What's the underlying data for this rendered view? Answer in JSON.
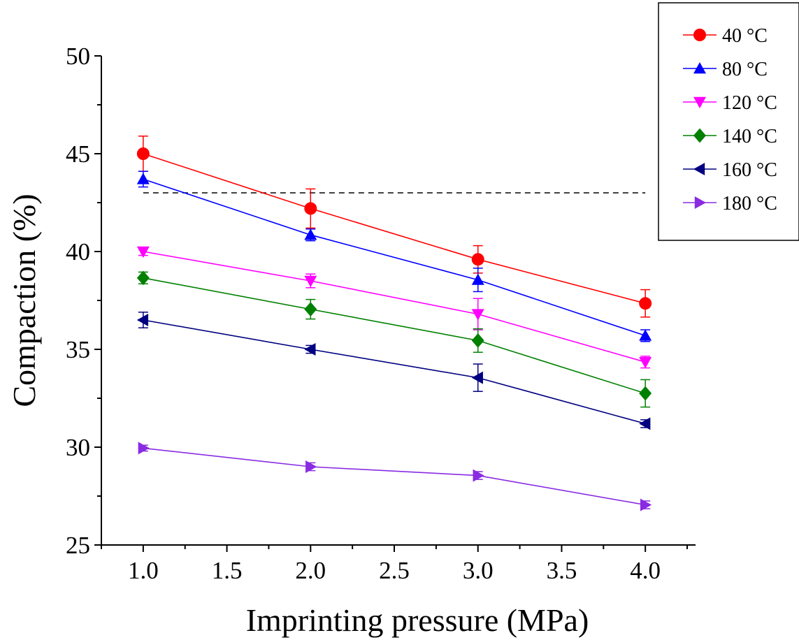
{
  "chart_data": {
    "type": "line",
    "xlabel": "Imprinting pressure (MPa)",
    "ylabel": "Compaction (%)",
    "xlim": [
      0.75,
      4.3
    ],
    "ylim": [
      25,
      50
    ],
    "x_ticks": [
      1.0,
      1.5,
      2.0,
      2.5,
      3.0,
      3.5,
      4.0
    ],
    "x_tick_labels": [
      "1.0",
      "1.5",
      "2.0",
      "2.5",
      "3.0",
      "3.5",
      "4.0"
    ],
    "y_ticks": [
      25,
      30,
      35,
      40,
      45,
      50
    ],
    "y_tick_labels": [
      "25",
      "30",
      "35",
      "40",
      "45",
      "50"
    ],
    "x": [
      1.0,
      2.0,
      3.0,
      4.0
    ],
    "reference_line": {
      "y": 43,
      "x_range": [
        1.0,
        4.0
      ],
      "style": "dashed"
    },
    "legend_position": "top-right",
    "grid": false,
    "series": [
      {
        "name": "40 °C",
        "color": "#ff0000",
        "marker": "circle",
        "values": [
          45.0,
          42.2,
          39.6,
          37.35
        ],
        "errors": [
          0.9,
          1.0,
          0.7,
          0.7
        ]
      },
      {
        "name": "80 °C",
        "color": "#0000ff",
        "marker": "triangle-up",
        "values": [
          43.7,
          40.85,
          38.55,
          35.7
        ],
        "errors": [
          0.4,
          0.3,
          0.6,
          0.3
        ]
      },
      {
        "name": "120 °C",
        "color": "#ff00ff",
        "marker": "triangle-down",
        "values": [
          40.0,
          38.5,
          36.8,
          34.35
        ],
        "errors": [
          0.2,
          0.35,
          0.8,
          0.3
        ]
      },
      {
        "name": "140 °C",
        "color": "#008000",
        "marker": "diamond",
        "values": [
          38.65,
          37.05,
          35.45,
          32.75
        ],
        "errors": [
          0.3,
          0.5,
          0.6,
          0.7
        ]
      },
      {
        "name": "160 °C",
        "color": "#000080",
        "marker": "triangle-left",
        "values": [
          36.5,
          35.0,
          33.55,
          31.2
        ],
        "errors": [
          0.4,
          0.2,
          0.7,
          0.2
        ]
      },
      {
        "name": "180 °C",
        "color": "#8a2be2",
        "marker": "triangle-right",
        "values": [
          29.95,
          29.0,
          28.55,
          27.05
        ],
        "errors": [
          0.15,
          0.2,
          0.2,
          0.2
        ]
      }
    ]
  }
}
